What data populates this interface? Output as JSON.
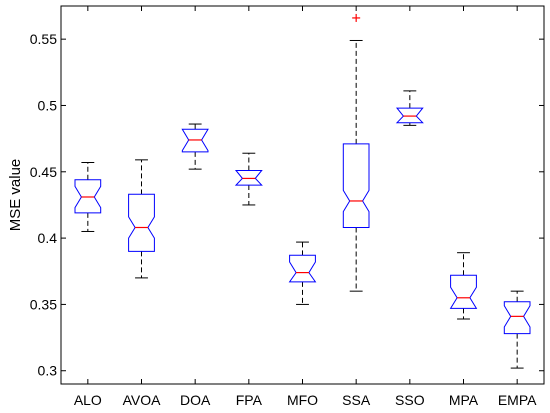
{
  "chart_data": {
    "type": "boxplot",
    "title": "",
    "xlabel": "",
    "ylabel": "MSE value",
    "ylim": [
      0.29,
      0.575
    ],
    "yticks": [
      0.3,
      0.35,
      0.4,
      0.45,
      0.5,
      0.55
    ],
    "ytick_labels": [
      "0.3",
      "0.35",
      "0.4",
      "0.45",
      "0.5",
      "0.55"
    ],
    "grid": false,
    "legend": "none",
    "notched": true,
    "categories": [
      "ALO",
      "AVOA",
      "DOA",
      "FPA",
      "MFO",
      "SSA",
      "SSO",
      "MPA",
      "EMPA"
    ],
    "boxes": [
      {
        "category": "ALO",
        "whisker_low": 0.405,
        "q1": 0.419,
        "median": 0.431,
        "q3": 0.444,
        "whisker_high": 0.457,
        "outliers": []
      },
      {
        "category": "AVOA",
        "whisker_low": 0.37,
        "q1": 0.39,
        "median": 0.408,
        "q3": 0.433,
        "whisker_high": 0.459,
        "outliers": []
      },
      {
        "category": "DOA",
        "whisker_low": 0.452,
        "q1": 0.465,
        "median": 0.474,
        "q3": 0.482,
        "whisker_high": 0.486,
        "outliers": []
      },
      {
        "category": "FPA",
        "whisker_low": 0.425,
        "q1": 0.44,
        "median": 0.445,
        "q3": 0.451,
        "whisker_high": 0.464,
        "outliers": []
      },
      {
        "category": "MFO",
        "whisker_low": 0.35,
        "q1": 0.367,
        "median": 0.374,
        "q3": 0.387,
        "whisker_high": 0.397,
        "outliers": []
      },
      {
        "category": "SSA",
        "whisker_low": 0.36,
        "q1": 0.408,
        "median": 0.428,
        "q3": 0.471,
        "whisker_high": 0.549,
        "outliers": [
          0.566
        ]
      },
      {
        "category": "SSO",
        "whisker_low": 0.485,
        "q1": 0.487,
        "median": 0.492,
        "q3": 0.498,
        "whisker_high": 0.511,
        "outliers": []
      },
      {
        "category": "MPA",
        "whisker_low": 0.339,
        "q1": 0.347,
        "median": 0.355,
        "q3": 0.372,
        "whisker_high": 0.389,
        "outliers": []
      },
      {
        "category": "EMPA",
        "whisker_low": 0.302,
        "q1": 0.328,
        "median": 0.341,
        "q3": 0.352,
        "whisker_high": 0.36,
        "outliers": []
      }
    ],
    "colors": {
      "box": "#0000ff",
      "median": "#ff0000",
      "whisker": "#000000",
      "outlier": "#ff0000",
      "axes": "#000000",
      "background": "#ffffff"
    }
  }
}
